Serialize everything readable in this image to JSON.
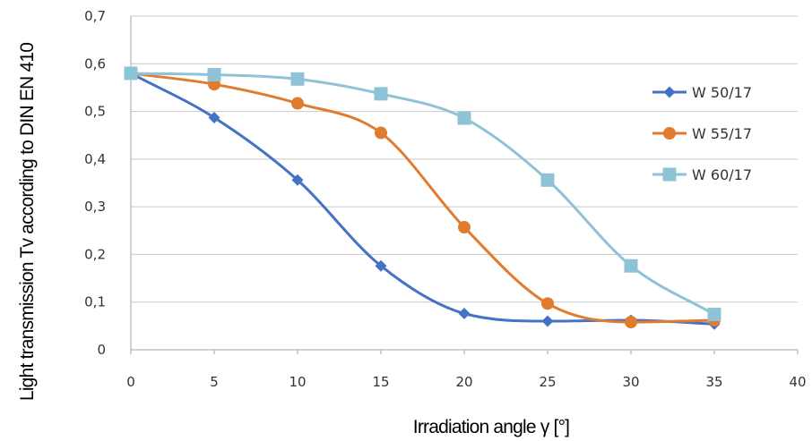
{
  "chart_data": {
    "type": "line",
    "title": "",
    "xlabel": "Irradiation angle γ  [°]",
    "ylabel": "Light transmission Tv according to DIN EN 410",
    "xlim": [
      0,
      40
    ],
    "ylim": [
      0,
      0.7
    ],
    "x_ticks": [
      "0",
      "5",
      "10",
      "15",
      "20",
      "25",
      "30",
      "35",
      "40"
    ],
    "y_ticks": [
      "0",
      "0,1",
      "0,2",
      "0,3",
      "0,4",
      "0,5",
      "0,6",
      "0,7"
    ],
    "grid": "horizontal",
    "legend_position": "right",
    "series": [
      {
        "name": "W 50/17",
        "color": "#4472C4",
        "marker": "diamond",
        "x": [
          0,
          5,
          10,
          15,
          20,
          25,
          30,
          35
        ],
        "y": [
          0.58,
          0.487,
          0.356,
          0.176,
          0.076,
          0.06,
          0.062,
          0.054
        ]
      },
      {
        "name": "W 55/17",
        "color": "#E07B30",
        "marker": "circle",
        "x": [
          0,
          5,
          10,
          15,
          20,
          25,
          30,
          35
        ],
        "y": [
          0.58,
          0.557,
          0.517,
          0.455,
          0.257,
          0.097,
          0.058,
          0.062
        ]
      },
      {
        "name": "W 60/17",
        "color": "#8EC3D6",
        "marker": "square",
        "x": [
          0,
          5,
          10,
          15,
          20,
          25,
          30,
          35
        ],
        "y": [
          0.58,
          0.577,
          0.568,
          0.537,
          0.486,
          0.356,
          0.176,
          0.074
        ]
      }
    ]
  }
}
